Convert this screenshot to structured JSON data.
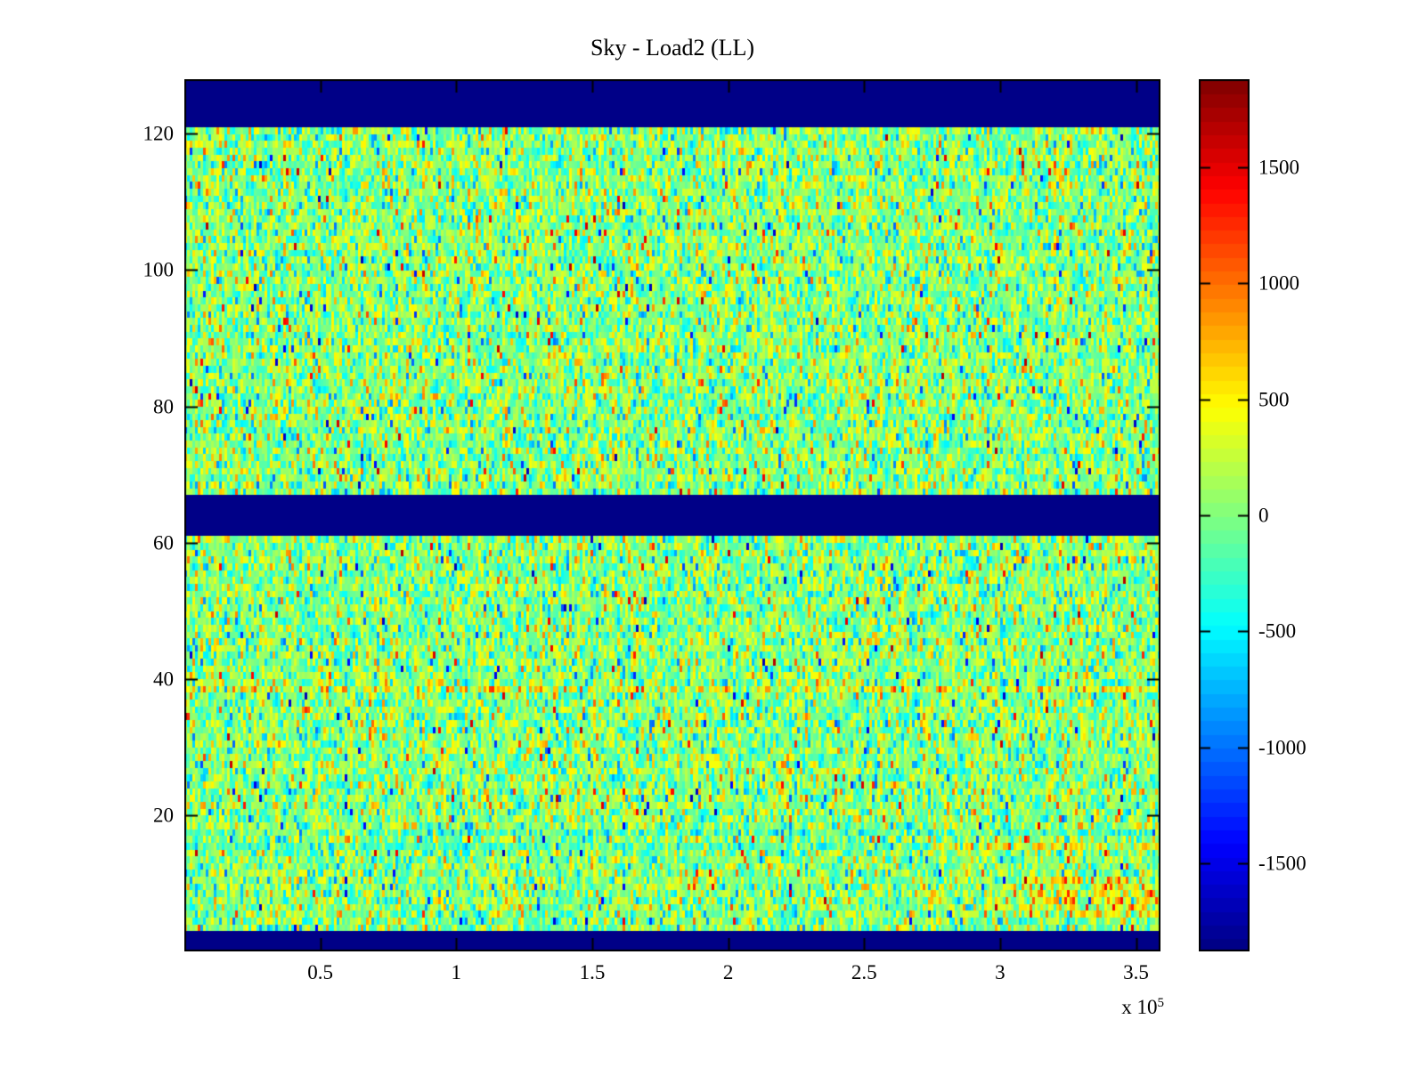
{
  "figure": {
    "background_color": "#ffffff",
    "axis_color": "#000000",
    "text_color": "#000000"
  },
  "chart_data": {
    "type": "heatmap",
    "title": "Sky - Load2 (LL)",
    "xlabel": "",
    "ylabel": "",
    "x_axis_exponent": {
      "prefix": "x 10",
      "exp": "5"
    },
    "xlim": [
      0,
      359000
    ],
    "ylim": [
      0,
      128
    ],
    "clim": [
      -1878,
      1878
    ],
    "colormap": "jet",
    "colormap_levels": 64,
    "grid_on": false,
    "x_ticks": [
      {
        "value": 50000,
        "label": "0.5"
      },
      {
        "value": 100000,
        "label": "1"
      },
      {
        "value": 150000,
        "label": "1.5"
      },
      {
        "value": 200000,
        "label": "2"
      },
      {
        "value": 250000,
        "label": "2.5"
      },
      {
        "value": 300000,
        "label": "3"
      },
      {
        "value": 350000,
        "label": "3.5"
      }
    ],
    "y_ticks": [
      {
        "value": 20,
        "label": "20"
      },
      {
        "value": 40,
        "label": "40"
      },
      {
        "value": 60,
        "label": "60"
      },
      {
        "value": 80,
        "label": "80"
      },
      {
        "value": 100,
        "label": "100"
      },
      {
        "value": 120,
        "label": "120"
      }
    ],
    "colorbar": {
      "position": "right",
      "min_color": "#000080",
      "max_color": "#800000",
      "ticks": [
        {
          "value": 1500,
          "label": "1500"
        },
        {
          "value": 1000,
          "label": "1000"
        },
        {
          "value": 500,
          "label": "500"
        },
        {
          "value": 0,
          "label": "0"
        },
        {
          "value": -500,
          "label": "-500"
        },
        {
          "value": -1000,
          "label": "-1000"
        },
        {
          "value": -1500,
          "label": "-1500"
        }
      ]
    },
    "grid": {
      "cols": 365,
      "rows": 128
    },
    "solid_band_rows": [
      {
        "rows": [
          0,
          2
        ],
        "description": "solid dark-navy band at bottom (y 0-3)"
      },
      {
        "rows": [
          61,
          66
        ],
        "description": "solid dark-navy band across middle (y 61-67)"
      },
      {
        "rows": [
          121,
          127
        ],
        "description": "solid dark-navy band at top (y 121.5-128)"
      }
    ],
    "noise": {
      "mean": 30,
      "std": 370,
      "outlier_prob": 0.02,
      "outlier_range": [
        800,
        1700
      ],
      "seed": 20240521,
      "description": "speckled near-zero noise (green/yellow/cyan with sparse red and blue cells)"
    },
    "features": [
      {
        "kind": "row",
        "row": 38,
        "bias": 350,
        "std": 450,
        "description": "orange/red streak across full width near y=39"
      },
      {
        "kind": "row-split",
        "row": 15,
        "left_bias": -200,
        "left_std": 280,
        "split_col": 280,
        "right_bias": 420,
        "right_std": 380,
        "description": "cyan-ish on left, orange on right near y=16"
      },
      {
        "kind": "row",
        "row": 17,
        "bias": -120,
        "std": 320,
        "description": "faint cyan streak near y=18"
      },
      {
        "kind": "block",
        "row_min": 5,
        "row_max": 10,
        "col_min": 314,
        "bias": 380,
        "std": 420,
        "description": "orange patch at bottom-right (x>3.25e5, y 6-11)"
      }
    ]
  }
}
